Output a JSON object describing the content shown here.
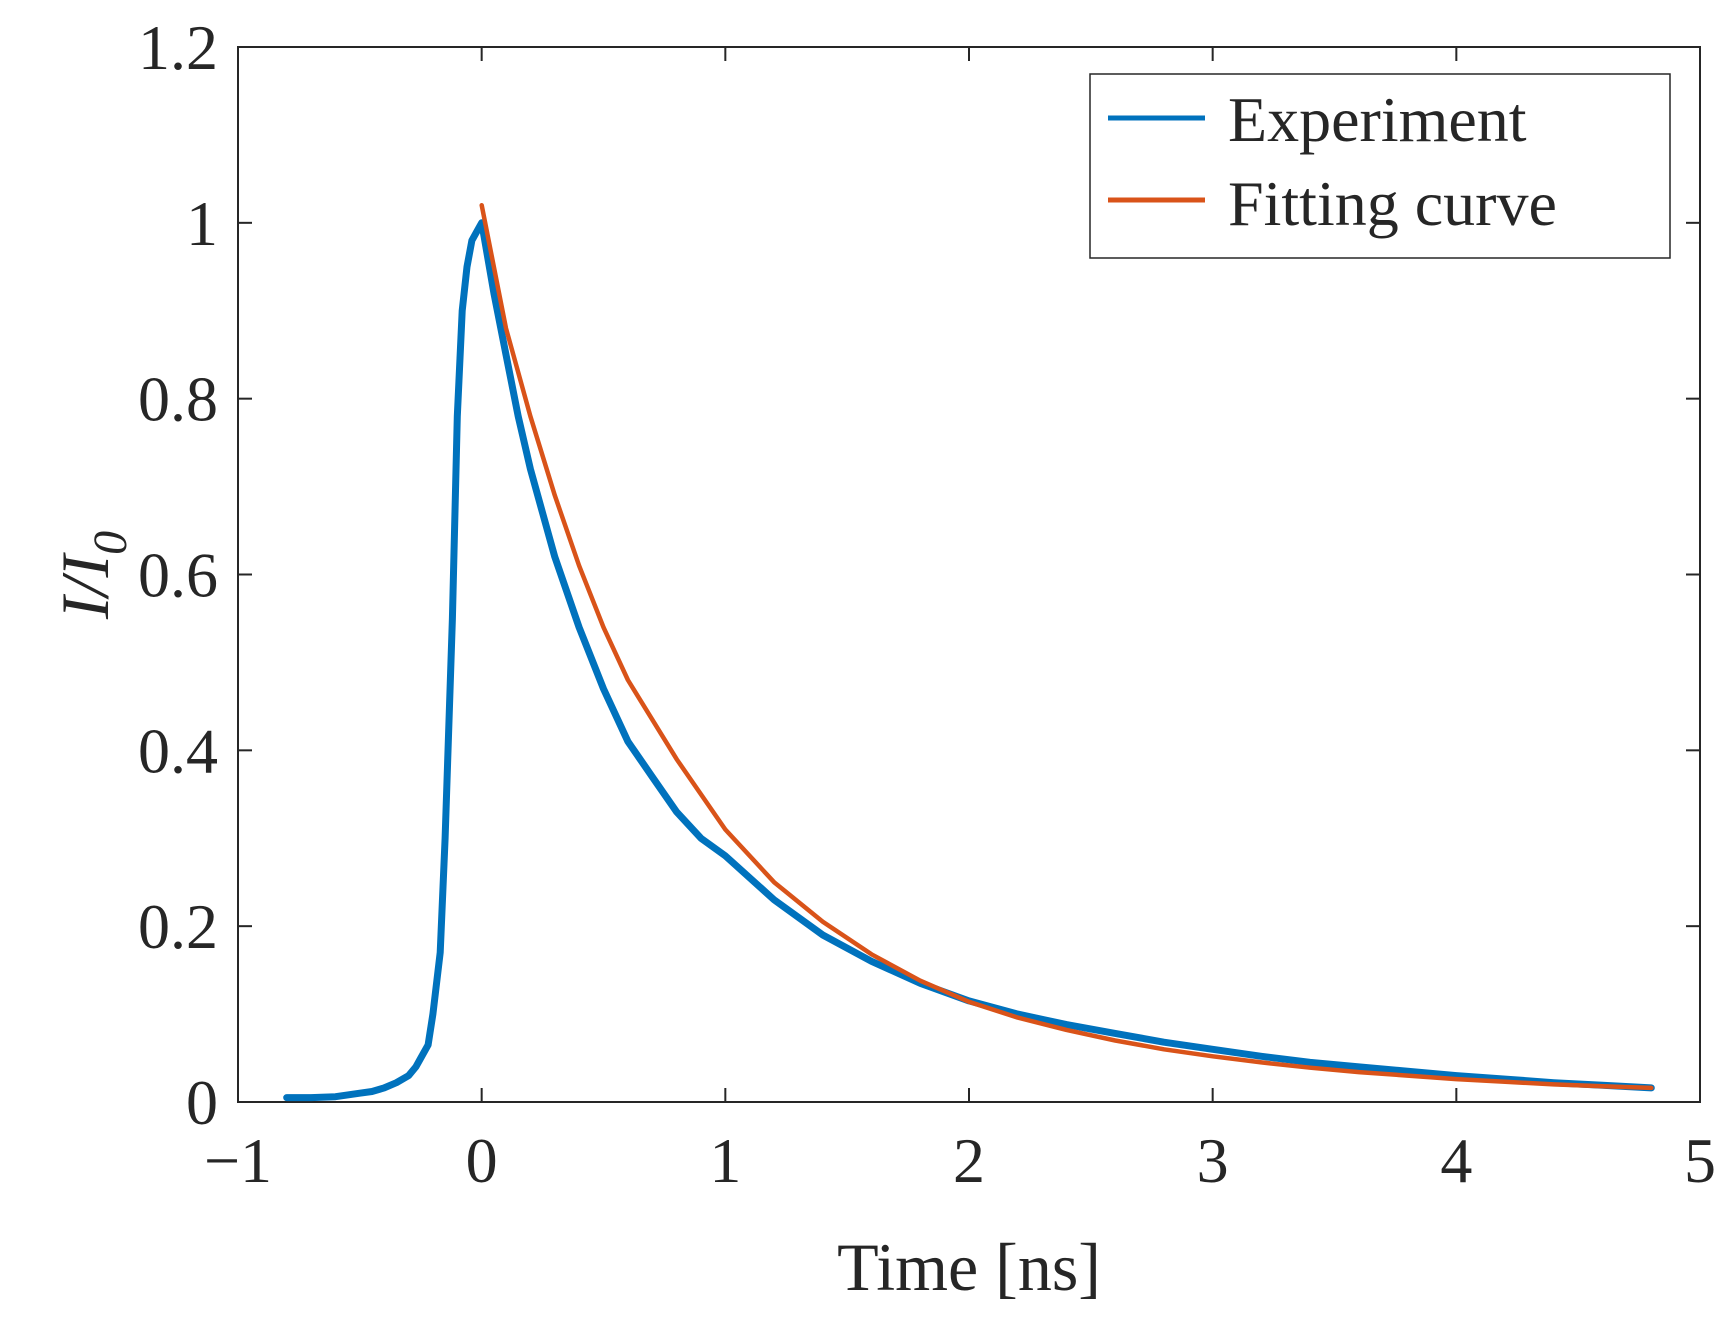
{
  "chart_data": {
    "type": "line",
    "title": "",
    "xlabel": "Time [ns]",
    "ylabel": "I/I0",
    "ylabel_parts": {
      "main": "I/I",
      "sub": "0"
    },
    "xlim": [
      -1,
      5
    ],
    "ylim": [
      0,
      1.2
    ],
    "xticks": [
      -1,
      0,
      1,
      2,
      3,
      4,
      5
    ],
    "xtick_labels": [
      "−1",
      "0",
      "1",
      "2",
      "3",
      "4",
      "5"
    ],
    "yticks": [
      0,
      0.2,
      0.4,
      0.6,
      0.8,
      1.0,
      1.2
    ],
    "ytick_labels": [
      "0",
      "0.2",
      "0.4",
      "0.6",
      "0.8",
      "1",
      "1.2"
    ],
    "grid": false,
    "legend_position": "top-right",
    "series": [
      {
        "name": "Experiment",
        "color": "#0072BD",
        "x": [
          -0.8,
          -0.7,
          -0.6,
          -0.5,
          -0.45,
          -0.4,
          -0.35,
          -0.3,
          -0.27,
          -0.25,
          -0.22,
          -0.2,
          -0.17,
          -0.15,
          -0.12,
          -0.1,
          -0.08,
          -0.06,
          -0.04,
          -0.02,
          0.0,
          0.05,
          0.1,
          0.15,
          0.2,
          0.25,
          0.3,
          0.4,
          0.5,
          0.6,
          0.7,
          0.8,
          0.9,
          1.0,
          1.2,
          1.4,
          1.6,
          1.8,
          2.0,
          2.2,
          2.4,
          2.6,
          2.8,
          3.0,
          3.2,
          3.4,
          3.6,
          3.8,
          4.0,
          4.2,
          4.4,
          4.6,
          4.8
        ],
        "y": [
          0.005,
          0.005,
          0.006,
          0.01,
          0.012,
          0.016,
          0.022,
          0.03,
          0.04,
          0.05,
          0.065,
          0.1,
          0.17,
          0.3,
          0.55,
          0.78,
          0.9,
          0.95,
          0.98,
          0.99,
          1.0,
          0.92,
          0.85,
          0.78,
          0.72,
          0.67,
          0.62,
          0.54,
          0.47,
          0.41,
          0.37,
          0.33,
          0.3,
          0.28,
          0.23,
          0.19,
          0.16,
          0.135,
          0.115,
          0.1,
          0.088,
          0.078,
          0.068,
          0.06,
          0.052,
          0.045,
          0.04,
          0.035,
          0.03,
          0.026,
          0.022,
          0.019,
          0.016
        ]
      },
      {
        "name": "Fitting curve",
        "color": "#D95319",
        "x": [
          0.0,
          0.1,
          0.2,
          0.3,
          0.4,
          0.5,
          0.6,
          0.8,
          1.0,
          1.2,
          1.4,
          1.6,
          1.8,
          2.0,
          2.2,
          2.4,
          2.6,
          2.8,
          3.0,
          3.2,
          3.4,
          3.6,
          3.8,
          4.0,
          4.2,
          4.4,
          4.6,
          4.8
        ],
        "y": [
          1.02,
          0.88,
          0.78,
          0.69,
          0.61,
          0.54,
          0.48,
          0.39,
          0.31,
          0.25,
          0.205,
          0.168,
          0.138,
          0.114,
          0.096,
          0.082,
          0.07,
          0.06,
          0.052,
          0.045,
          0.039,
          0.034,
          0.03,
          0.026,
          0.023,
          0.02,
          0.018,
          0.016
        ]
      }
    ]
  }
}
